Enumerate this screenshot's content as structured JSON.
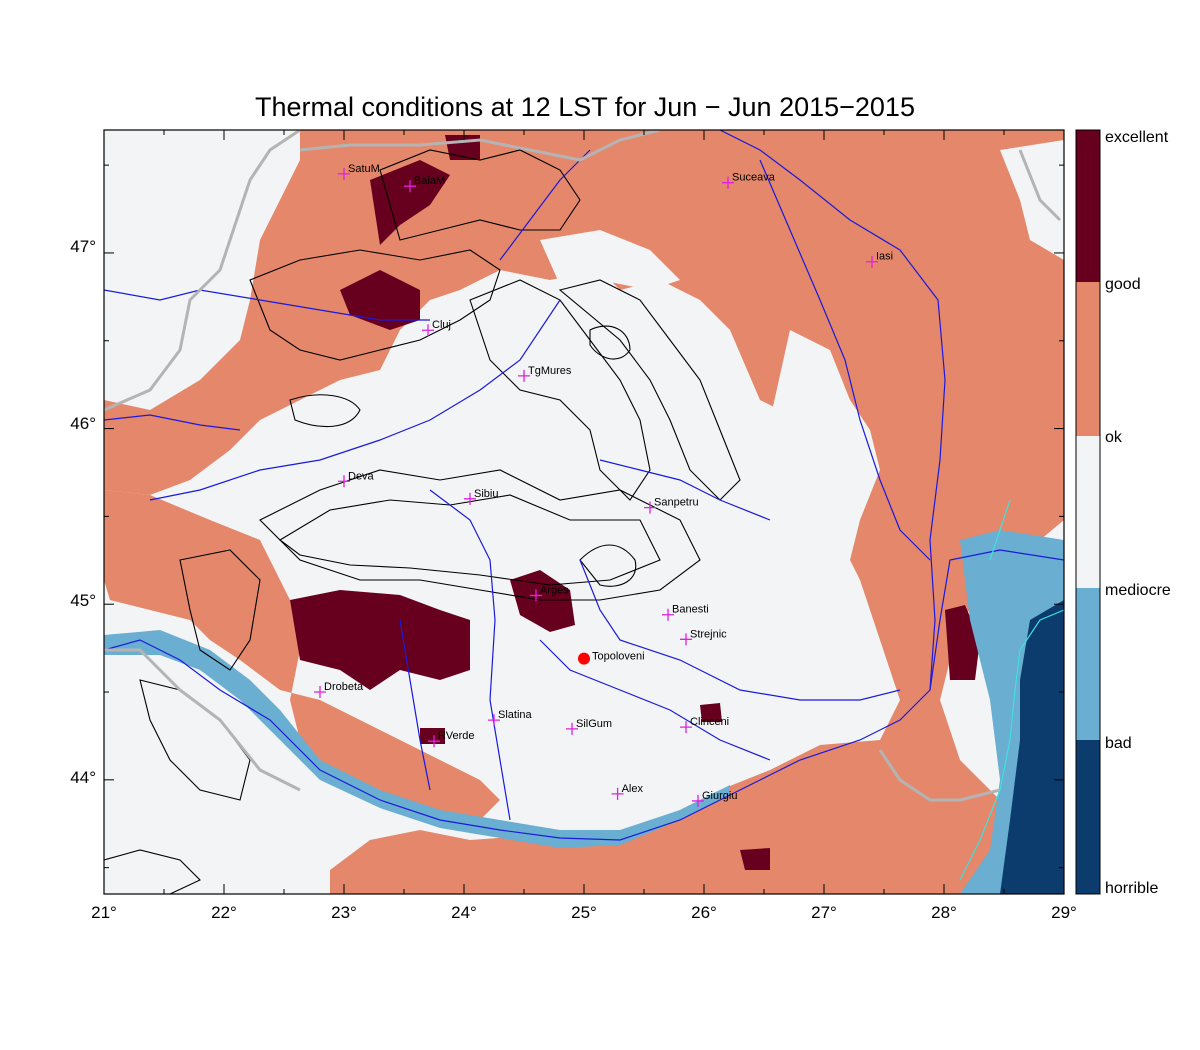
{
  "title": "Thermal conditions at 12 LST for Jun − Jun  2015−2015",
  "map": {
    "lon_range": [
      21,
      29
    ],
    "lat_range": [
      43.35,
      47.7
    ],
    "x_ticks": [
      "21°",
      "22°",
      "23°",
      "24°",
      "25°",
      "26°",
      "27°",
      "28°",
      "29°"
    ],
    "y_ticks": [
      "44°",
      "45°",
      "46°",
      "47°"
    ],
    "y_tick_values": [
      44,
      45,
      46,
      47
    ],
    "highlight": {
      "name": "Topoloveni",
      "lon": 25.0,
      "lat": 44.69,
      "color": "#ff0000"
    },
    "cities": [
      {
        "name": "SatuM",
        "lon": 23.0,
        "lat": 47.45
      },
      {
        "name": "BaiaM",
        "lon": 23.55,
        "lat": 47.38
      },
      {
        "name": "Suceava",
        "lon": 26.2,
        "lat": 47.4
      },
      {
        "name": "Iasi",
        "lon": 27.4,
        "lat": 46.95
      },
      {
        "name": "Cluj",
        "lon": 23.7,
        "lat": 46.56
      },
      {
        "name": "TgMures",
        "lon": 24.5,
        "lat": 46.3
      },
      {
        "name": "Deva",
        "lon": 23.0,
        "lat": 45.7
      },
      {
        "name": "Sibiu",
        "lon": 24.05,
        "lat": 45.6
      },
      {
        "name": "Sanpetru",
        "lon": 25.55,
        "lat": 45.55
      },
      {
        "name": "Arges",
        "lon": 24.6,
        "lat": 45.05
      },
      {
        "name": "Banesti",
        "lon": 25.7,
        "lat": 44.94
      },
      {
        "name": "Strejnic",
        "lon": 25.85,
        "lat": 44.8
      },
      {
        "name": "Drobeta",
        "lon": 22.8,
        "lat": 44.5
      },
      {
        "name": "Slatina",
        "lon": 24.25,
        "lat": 44.34
      },
      {
        "name": "SilGum",
        "lon": 24.9,
        "lat": 44.29
      },
      {
        "name": "Clinceni",
        "lon": 25.85,
        "lat": 44.3
      },
      {
        "name": "RVerde",
        "lon": 23.75,
        "lat": 44.22
      },
      {
        "name": "Alex",
        "lon": 25.28,
        "lat": 43.92
      },
      {
        "name": "Giurgiu",
        "lon": 25.95,
        "lat": 43.88
      }
    ]
  },
  "legend": {
    "classes": [
      {
        "label": "excellent",
        "color": "#67001f"
      },
      {
        "label": "good",
        "color": "#e4876a"
      },
      {
        "label": "ok",
        "color": "#f3f4f6"
      },
      {
        "label": "mediocre",
        "color": "#6aaed2"
      },
      {
        "label": "bad",
        "color": "#0c3c6e"
      },
      {
        "label": "horrible",
        "color": ""
      }
    ]
  },
  "colors": {
    "ok": "#f3f4f6",
    "good": "#e4876a",
    "excellent": "#67001f",
    "mediocre": "#6aaed2",
    "bad": "#0c3c6e",
    "rivers": "#1a1adb",
    "borders": "#b4b4b4",
    "contours": "#000000",
    "city_marker": "#e020e0"
  }
}
